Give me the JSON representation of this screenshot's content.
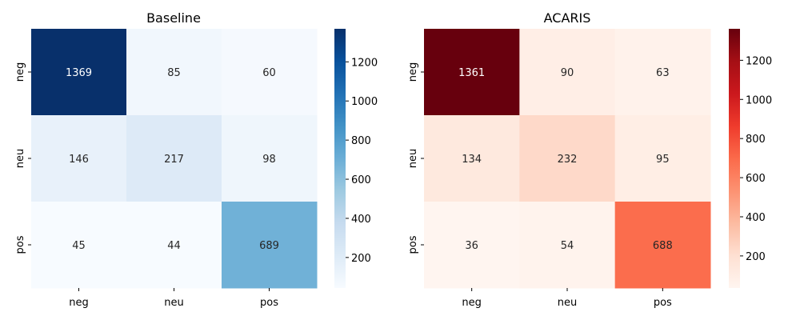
{
  "chart_data": [
    {
      "type": "heatmap",
      "title": "Baseline",
      "x_categories": [
        "neg",
        "neu",
        "pos"
      ],
      "y_categories": [
        "neg",
        "neu",
        "pos"
      ],
      "values": [
        [
          1369,
          85,
          60
        ],
        [
          146,
          217,
          98
        ],
        [
          45,
          44,
          689
        ]
      ],
      "colormap": "Blues",
      "colorbar": {
        "range": [
          44,
          1369
        ],
        "ticks": [
          200,
          400,
          600,
          800,
          1000,
          1200
        ]
      }
    },
    {
      "type": "heatmap",
      "title": "ACARIS",
      "x_categories": [
        "neg",
        "neu",
        "pos"
      ],
      "y_categories": [
        "neg",
        "neu",
        "pos"
      ],
      "values": [
        [
          1361,
          90,
          63
        ],
        [
          134,
          232,
          95
        ],
        [
          36,
          54,
          688
        ]
      ],
      "colormap": "Reds",
      "colorbar": {
        "range": [
          36,
          1361
        ],
        "ticks": [
          200,
          400,
          600,
          800,
          1000,
          1200
        ]
      }
    }
  ],
  "colors": {
    "Blues": [
      "#f7fbff",
      "#deebf7",
      "#c6dbef",
      "#9ecae1",
      "#6baed6",
      "#4292c6",
      "#2171b5",
      "#08519c",
      "#08306b"
    ],
    "Reds": [
      "#fff5f0",
      "#fee0d2",
      "#fcbba1",
      "#fc9272",
      "#fb6a4a",
      "#ef3b2c",
      "#cb181d",
      "#a50f15",
      "#67000d"
    ]
  }
}
